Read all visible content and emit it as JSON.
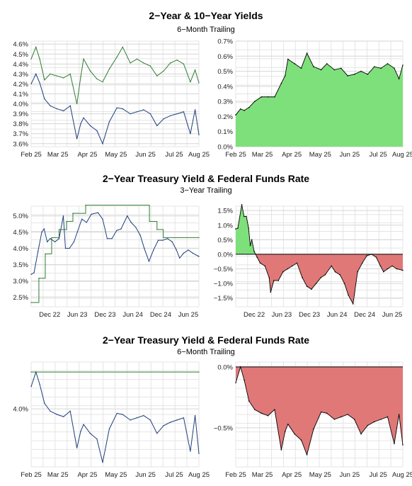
{
  "sections": [
    {
      "title": "2−Year & 10−Year Yields",
      "subtitle": "6−Month Trailing"
    },
    {
      "title": "2−Year Treasury Yield & Federal Funds Rate",
      "subtitle": "3−Year Trailing"
    },
    {
      "title": "2−Year Treasury Yield & Federal Funds Rate",
      "subtitle": "6−Month Trailing"
    }
  ],
  "colors": {
    "blue": "#1f3f7a",
    "green": "#2e7d32",
    "fill_green": "#7ee07a",
    "fill_red": "#e07878",
    "grid": "#e4e4e4"
  },
  "chart_data": [
    {
      "type": "line",
      "title": "",
      "x_range": [
        "2025-02-15",
        "2025-08-10"
      ],
      "ylim": [
        3.57,
        4.63
      ],
      "yticks": [
        "4.6%",
        "4.5%",
        "4.4%",
        "4.3%",
        "4.2%",
        "4.1%",
        "4.0%",
        "3.9%",
        "3.8%",
        "3.7%",
        "3.6%"
      ],
      "ytick_values": [
        4.6,
        4.5,
        4.4,
        4.3,
        4.2,
        4.1,
        4.0,
        3.9,
        3.8,
        3.7,
        3.6
      ],
      "xticks": [
        "Feb 25",
        "Mar 25",
        "Apr 25",
        "May 25",
        "Jun 25",
        "Jul 25",
        "Aug 25"
      ],
      "xtick_dates": [
        "2025-02-15",
        "2025-03-15",
        "2025-04-15",
        "2025-05-15",
        "2025-06-15",
        "2025-07-15",
        "2025-08-10"
      ],
      "series": [
        {
          "name": "",
          "color": "green",
          "x": [
            "2025-02-15",
            "2025-02-20",
            "2025-02-24",
            "2025-03-01",
            "2025-03-07",
            "2025-03-14",
            "2025-03-21",
            "2025-03-28",
            "2025-04-04",
            "2025-04-08",
            "2025-04-11",
            "2025-04-18",
            "2025-04-25",
            "2025-05-01",
            "2025-05-08",
            "2025-05-16",
            "2025-05-22",
            "2025-05-30",
            "2025-06-06",
            "2025-06-13",
            "2025-06-20",
            "2025-06-27",
            "2025-07-04",
            "2025-07-11",
            "2025-07-18",
            "2025-07-25",
            "2025-08-01",
            "2025-08-06",
            "2025-08-10"
          ],
          "values": [
            4.45,
            4.57,
            4.45,
            4.24,
            4.3,
            4.28,
            4.26,
            4.3,
            4.0,
            4.27,
            4.45,
            4.33,
            4.25,
            4.22,
            4.35,
            4.47,
            4.57,
            4.41,
            4.45,
            4.41,
            4.38,
            4.28,
            4.33,
            4.41,
            4.44,
            4.4,
            4.22,
            4.34,
            4.21
          ]
        },
        {
          "name": "",
          "color": "blue",
          "x": [
            "2025-02-15",
            "2025-02-20",
            "2025-02-24",
            "2025-03-01",
            "2025-03-07",
            "2025-03-14",
            "2025-03-21",
            "2025-03-28",
            "2025-04-04",
            "2025-04-08",
            "2025-04-11",
            "2025-04-18",
            "2025-04-25",
            "2025-05-01",
            "2025-05-08",
            "2025-05-16",
            "2025-05-22",
            "2025-05-30",
            "2025-06-06",
            "2025-06-13",
            "2025-06-20",
            "2025-06-27",
            "2025-07-04",
            "2025-07-11",
            "2025-07-18",
            "2025-07-25",
            "2025-08-01",
            "2025-08-06",
            "2025-08-10"
          ],
          "values": [
            4.2,
            4.3,
            4.21,
            4.05,
            3.98,
            3.95,
            3.93,
            3.98,
            3.65,
            3.8,
            3.86,
            3.78,
            3.73,
            3.6,
            3.82,
            3.96,
            3.95,
            3.9,
            3.92,
            3.94,
            3.9,
            3.78,
            3.85,
            3.88,
            3.9,
            3.92,
            3.7,
            3.94,
            3.69
          ]
        }
      ]
    },
    {
      "type": "area",
      "title": "",
      "x_range": [
        "2025-02-15",
        "2025-08-10"
      ],
      "ylim": [
        0.0,
        0.7
      ],
      "yticks": [
        "0.7%",
        "0.6%",
        "0.5%",
        "0.4%",
        "0.3%",
        "0.2%",
        "0.1%",
        "0.0%"
      ],
      "ytick_values": [
        0.7,
        0.6,
        0.5,
        0.4,
        0.3,
        0.2,
        0.1,
        0.0
      ],
      "xticks": [
        "Feb 25",
        "Mar 25",
        "Apr 25",
        "May 25",
        "Jun 25",
        "Jul 25",
        "Aug 25"
      ],
      "xtick_dates": [
        "2025-02-15",
        "2025-03-15",
        "2025-04-15",
        "2025-05-15",
        "2025-06-15",
        "2025-07-15",
        "2025-08-10"
      ],
      "series": [
        {
          "name": "",
          "x": [
            "2025-02-15",
            "2025-02-20",
            "2025-02-24",
            "2025-03-01",
            "2025-03-07",
            "2025-03-14",
            "2025-03-21",
            "2025-03-28",
            "2025-04-04",
            "2025-04-08",
            "2025-04-11",
            "2025-04-18",
            "2025-04-25",
            "2025-05-01",
            "2025-05-08",
            "2025-05-16",
            "2025-05-22",
            "2025-05-30",
            "2025-06-06",
            "2025-06-13",
            "2025-06-20",
            "2025-06-27",
            "2025-07-04",
            "2025-07-11",
            "2025-07-18",
            "2025-07-25",
            "2025-08-01",
            "2025-08-06",
            "2025-08-10"
          ],
          "values": [
            0.21,
            0.25,
            0.24,
            0.26,
            0.3,
            0.33,
            0.33,
            0.33,
            0.42,
            0.47,
            0.58,
            0.55,
            0.52,
            0.62,
            0.53,
            0.51,
            0.55,
            0.51,
            0.52,
            0.47,
            0.48,
            0.5,
            0.48,
            0.53,
            0.52,
            0.55,
            0.52,
            0.45,
            0.54
          ]
        }
      ]
    },
    {
      "type": "line",
      "title": "",
      "x_range": [
        "2022-08-01",
        "2025-08-10"
      ],
      "ylim": [
        2.2,
        5.3
      ],
      "yticks": [
        "5.0%",
        "4.5%",
        "4.0%",
        "3.5%",
        "3.0%",
        "2.5%"
      ],
      "ytick_values": [
        5.0,
        4.5,
        4.0,
        3.5,
        3.0,
        2.5
      ],
      "xticks": [
        "Dec 22",
        "Jun 23",
        "Dec 23",
        "Jun 24",
        "Dec 24",
        "Jun 25"
      ],
      "xtick_dates": [
        "2022-12-01",
        "2023-06-01",
        "2023-12-01",
        "2024-06-01",
        "2024-12-01",
        "2025-06-01"
      ],
      "series": [
        {
          "name": "",
          "color": "green",
          "step": true,
          "x": [
            "2022-08-01",
            "2022-09-21",
            "2022-11-02",
            "2022-12-14",
            "2023-02-01",
            "2023-03-22",
            "2023-05-03",
            "2023-07-26",
            "2024-09-18",
            "2024-11-07",
            "2024-12-18",
            "2025-08-10"
          ],
          "values": [
            2.33,
            3.08,
            3.83,
            4.33,
            4.58,
            4.83,
            5.08,
            5.33,
            4.83,
            4.58,
            4.33,
            4.33
          ]
        },
        {
          "name": "",
          "color": "blue",
          "x": [
            "2022-08-01",
            "2022-08-20",
            "2022-09-15",
            "2022-10-10",
            "2022-10-25",
            "2022-11-15",
            "2022-12-05",
            "2023-01-05",
            "2023-02-01",
            "2023-03-01",
            "2023-03-15",
            "2023-04-10",
            "2023-05-10",
            "2023-06-01",
            "2023-07-01",
            "2023-08-01",
            "2023-09-01",
            "2023-10-15",
            "2023-11-15",
            "2023-12-15",
            "2024-01-15",
            "2024-02-15",
            "2024-03-15",
            "2024-04-25",
            "2024-05-20",
            "2024-06-20",
            "2024-07-20",
            "2024-08-15",
            "2024-09-15",
            "2024-10-15",
            "2024-11-15",
            "2024-12-15",
            "2025-01-15",
            "2025-02-15",
            "2025-03-15",
            "2025-04-05",
            "2025-05-01",
            "2025-06-01",
            "2025-07-01",
            "2025-08-10"
          ],
          "values": [
            3.2,
            3.25,
            3.9,
            4.5,
            4.6,
            4.2,
            4.3,
            4.2,
            4.3,
            5.0,
            4.0,
            4.0,
            4.2,
            4.5,
            4.9,
            4.8,
            5.05,
            5.1,
            4.9,
            4.3,
            4.3,
            4.55,
            4.6,
            5.0,
            4.8,
            4.65,
            4.4,
            4.0,
            3.6,
            3.95,
            4.25,
            4.25,
            4.3,
            4.2,
            3.95,
            3.7,
            3.85,
            3.95,
            3.85,
            3.75
          ]
        }
      ]
    },
    {
      "type": "area",
      "title": "",
      "x_range": [
        "2022-08-01",
        "2025-08-10"
      ],
      "ylim": [
        -1.8,
        1.65
      ],
      "yticks": [
        "1.5%",
        "1.0%",
        "0.5%",
        "0.0%",
        "−0.5%",
        "−1.0%",
        "−1.5%"
      ],
      "ytick_values": [
        1.5,
        1.0,
        0.5,
        0.0,
        -0.5,
        -1.0,
        -1.5
      ],
      "xticks": [
        "Dec 22",
        "Jun 23",
        "Dec 23",
        "Jun 24",
        "Dec 24",
        "Jun 25"
      ],
      "xtick_dates": [
        "2022-12-01",
        "2023-06-01",
        "2023-12-01",
        "2024-06-01",
        "2024-12-01",
        "2025-06-01"
      ],
      "series": [
        {
          "name": "",
          "x": [
            "2022-08-01",
            "2022-08-15",
            "2022-09-10",
            "2022-09-25",
            "2022-10-10",
            "2022-10-25",
            "2022-11-05",
            "2022-11-15",
            "2022-12-01",
            "2022-12-20",
            "2023-01-10",
            "2023-02-10",
            "2023-03-10",
            "2023-03-20",
            "2023-04-10",
            "2023-05-10",
            "2023-06-10",
            "2023-07-10",
            "2023-08-10",
            "2023-09-10",
            "2023-10-15",
            "2023-11-15",
            "2023-12-15",
            "2024-01-15",
            "2024-02-15",
            "2024-03-15",
            "2024-04-25",
            "2024-05-20",
            "2024-06-20",
            "2024-07-20",
            "2024-08-15",
            "2024-09-15",
            "2024-10-15",
            "2024-11-15",
            "2024-12-15",
            "2025-01-15",
            "2025-02-15",
            "2025-03-15",
            "2025-04-05",
            "2025-05-01",
            "2025-06-01",
            "2025-07-01",
            "2025-08-10"
          ],
          "values": [
            0.87,
            0.9,
            1.7,
            1.3,
            1.3,
            0.9,
            0.3,
            0.5,
            0.1,
            -0.1,
            -0.3,
            -0.4,
            -0.8,
            -1.3,
            -0.9,
            -0.9,
            -0.6,
            -0.5,
            -0.4,
            -0.3,
            -0.8,
            -1.1,
            -1.2,
            -1.0,
            -0.8,
            -0.7,
            -0.4,
            -0.6,
            -0.7,
            -1.0,
            -1.4,
            -1.7,
            -0.6,
            -0.3,
            -0.05,
            0.0,
            -0.1,
            -0.4,
            -0.6,
            -0.5,
            -0.4,
            -0.5,
            -0.55
          ]
        }
      ]
    },
    {
      "type": "line",
      "title": "",
      "x_range": [
        "2025-02-15",
        "2025-08-10"
      ],
      "ylim": [
        3.48,
        4.42
      ],
      "yticks": [
        "4.0%"
      ],
      "ytick_values": [
        4.0
      ],
      "xticks": [
        "Feb 25",
        "Mar 25",
        "Apr 25",
        "May 25",
        "Jun 25",
        "Jul 25",
        "Aug 25"
      ],
      "xtick_dates": [
        "2025-02-15",
        "2025-03-15",
        "2025-04-15",
        "2025-05-15",
        "2025-06-15",
        "2025-07-15",
        "2025-08-10"
      ],
      "series": [
        {
          "name": "",
          "color": "green",
          "x": [
            "2025-02-15",
            "2025-08-10"
          ],
          "values": [
            4.33,
            4.33
          ]
        },
        {
          "name": "",
          "color": "blue",
          "x": [
            "2025-02-15",
            "2025-02-20",
            "2025-02-24",
            "2025-03-01",
            "2025-03-07",
            "2025-03-14",
            "2025-03-21",
            "2025-03-28",
            "2025-04-04",
            "2025-04-08",
            "2025-04-11",
            "2025-04-18",
            "2025-04-25",
            "2025-05-01",
            "2025-05-08",
            "2025-05-16",
            "2025-05-22",
            "2025-05-30",
            "2025-06-06",
            "2025-06-13",
            "2025-06-20",
            "2025-06-27",
            "2025-07-04",
            "2025-07-11",
            "2025-07-18",
            "2025-07-25",
            "2025-08-01",
            "2025-08-06",
            "2025-08-10"
          ],
          "values": [
            4.2,
            4.33,
            4.22,
            4.05,
            3.98,
            3.95,
            3.93,
            3.98,
            3.65,
            3.8,
            3.86,
            3.78,
            3.73,
            3.52,
            3.82,
            3.96,
            3.95,
            3.9,
            3.92,
            3.94,
            3.9,
            3.78,
            3.85,
            3.88,
            3.9,
            3.92,
            3.62,
            3.94,
            3.6
          ]
        }
      ]
    },
    {
      "type": "area",
      "title": "",
      "x_range": [
        "2025-02-15",
        "2025-08-10"
      ],
      "ylim": [
        -0.82,
        0.04
      ],
      "yticks": [
        "0.0%",
        "−0.5%"
      ],
      "ytick_values": [
        0.0,
        -0.5
      ],
      "xticks": [
        "Feb 25",
        "Mar 25",
        "Apr 25",
        "May 25",
        "Jun 25",
        "Jul 25",
        "Aug 25"
      ],
      "xtick_dates": [
        "2025-02-15",
        "2025-03-15",
        "2025-04-15",
        "2025-05-15",
        "2025-06-15",
        "2025-07-15",
        "2025-08-10"
      ],
      "series": [
        {
          "name": "",
          "x": [
            "2025-02-15",
            "2025-02-20",
            "2025-02-24",
            "2025-03-01",
            "2025-03-07",
            "2025-03-14",
            "2025-03-21",
            "2025-03-28",
            "2025-04-04",
            "2025-04-08",
            "2025-04-11",
            "2025-04-18",
            "2025-04-25",
            "2025-05-01",
            "2025-05-08",
            "2025-05-16",
            "2025-05-22",
            "2025-05-30",
            "2025-06-06",
            "2025-06-13",
            "2025-06-20",
            "2025-06-27",
            "2025-07-04",
            "2025-07-11",
            "2025-07-18",
            "2025-07-25",
            "2025-08-01",
            "2025-08-06",
            "2025-08-10"
          ],
          "values": [
            -0.13,
            0.0,
            -0.11,
            -0.28,
            -0.35,
            -0.38,
            -0.4,
            -0.35,
            -0.68,
            -0.53,
            -0.47,
            -0.55,
            -0.6,
            -0.72,
            -0.51,
            -0.37,
            -0.38,
            -0.43,
            -0.41,
            -0.39,
            -0.43,
            -0.55,
            -0.48,
            -0.45,
            -0.43,
            -0.41,
            -0.63,
            -0.39,
            -0.64
          ]
        }
      ]
    }
  ]
}
